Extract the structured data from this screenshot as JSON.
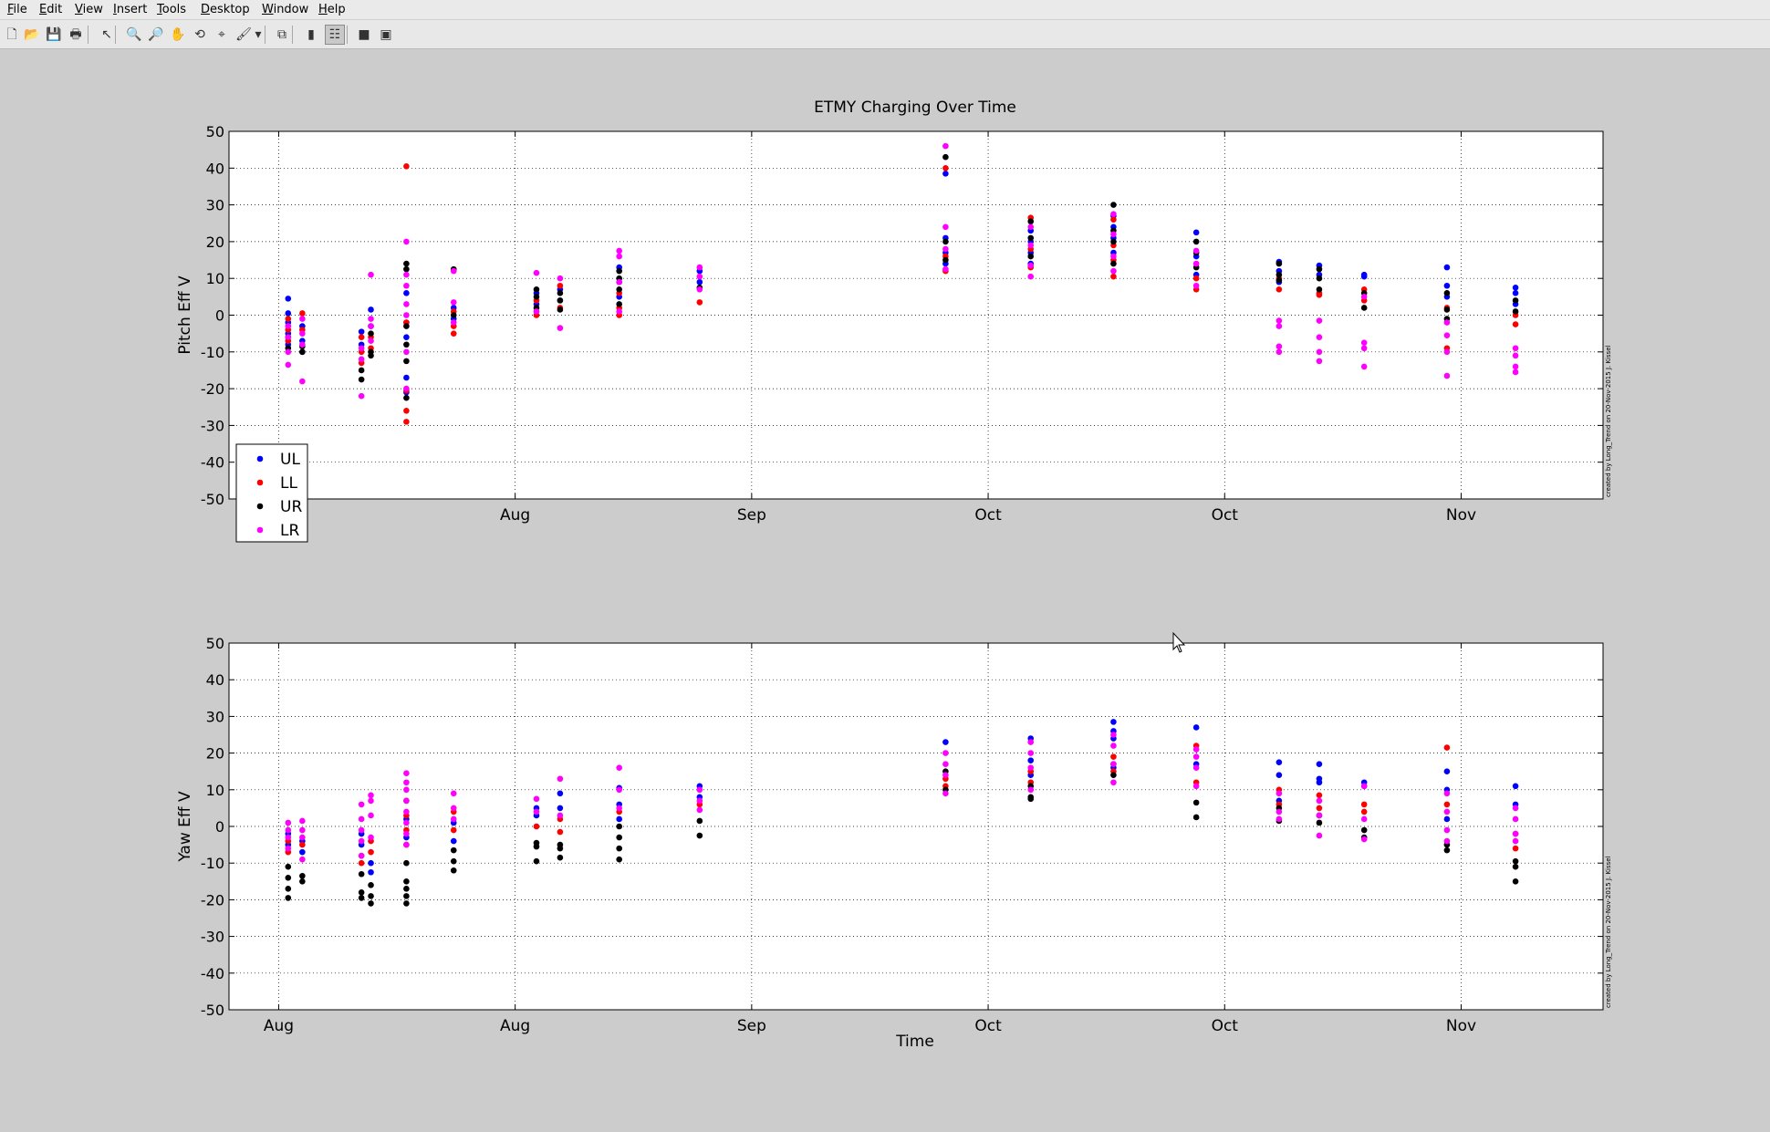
{
  "window": {
    "menus": [
      {
        "label": "File",
        "mnemonic": "F",
        "rest": "ile"
      },
      {
        "label": "Edit",
        "mnemonic": "E",
        "rest": "dit"
      },
      {
        "label": "View",
        "mnemonic": "V",
        "rest": "iew"
      },
      {
        "label": "Insert",
        "mnemonic": "I",
        "rest": "nsert"
      },
      {
        "label": "Tools",
        "mnemonic": "T",
        "rest": "ools"
      },
      {
        "label": "Desktop",
        "mnemonic": "D",
        "rest": "esktop"
      },
      {
        "label": "Window",
        "mnemonic": "W",
        "rest": "indow"
      },
      {
        "label": "Help",
        "mnemonic": "H",
        "rest": "elp"
      }
    ],
    "toolbar": [
      {
        "name": "new-figure-icon",
        "glyph": "🗋"
      },
      {
        "name": "open-file-icon",
        "glyph": "📂"
      },
      {
        "name": "save-icon",
        "glyph": "💾"
      },
      {
        "name": "print-icon",
        "glyph": "🖶"
      },
      {
        "name": "edit-plot-arrow-icon",
        "glyph": "↖"
      },
      {
        "name": "zoom-in-icon",
        "glyph": "🔍"
      },
      {
        "name": "zoom-out-icon",
        "glyph": "🔎"
      },
      {
        "name": "pan-hand-icon",
        "glyph": "✋"
      },
      {
        "name": "rotate-3d-icon",
        "glyph": "⟲"
      },
      {
        "name": "data-cursor-icon",
        "glyph": "⌖"
      },
      {
        "name": "brush-icon",
        "glyph": "🖌"
      },
      {
        "name": "brush-dropdown-icon",
        "glyph": "▾"
      },
      {
        "name": "link-plot-icon",
        "glyph": "⧉"
      },
      {
        "name": "insert-colorbar-icon",
        "glyph": "▮"
      },
      {
        "name": "insert-legend-icon",
        "glyph": "☷"
      },
      {
        "name": "hide-plot-tools-icon",
        "glyph": "■"
      },
      {
        "name": "show-plot-tools-icon",
        "glyph": "▣"
      }
    ]
  },
  "colors": {
    "UL": "#0000ff",
    "LL": "#ff0000",
    "UR": "#000000",
    "LR": "#ff00ff"
  },
  "figure_title": "ETMY Charging Over Time",
  "xlabel": "Time",
  "credit": "created by Long_Trend on 20-Nov-2015 J. Kissel",
  "chart_data": [
    {
      "type": "scatter",
      "title": "ETMY Charging Over Time",
      "xlabel": "",
      "ylabel": "Pitch Eff V",
      "ylim": [
        -50,
        50
      ],
      "yticks": [
        50,
        40,
        30,
        20,
        10,
        0,
        -10,
        -20,
        -30,
        -40,
        -50
      ],
      "xticks": [
        "Aug",
        "Aug",
        "Sep",
        "Oct",
        "Oct",
        "Nov"
      ],
      "x_tick_positions": [
        0,
        1,
        2,
        3,
        4,
        5
      ],
      "xlim": [
        -0.21,
        5.6
      ],
      "grid": "on",
      "legend": {
        "placement": "bottom-left",
        "entries": [
          "UL",
          "LL",
          "UR",
          "LR"
        ]
      },
      "columns": [
        {
          "x": 0.04,
          "UL": [
            4.5,
            0.5,
            -2,
            -5,
            -8
          ],
          "LL": [
            -1,
            -4,
            -7
          ],
          "UR": [
            -6,
            -9
          ],
          "LR": [
            -3,
            -6,
            -10,
            -13.5
          ]
        },
        {
          "x": 0.1,
          "UL": [
            -3,
            -7,
            -10
          ],
          "LL": [
            0.5,
            -4
          ],
          "UR": [
            -8.5,
            -10
          ],
          "LR": [
            -1,
            -5,
            -8,
            -18
          ]
        },
        {
          "x": 0.35,
          "UL": [
            -4.5,
            -8
          ],
          "LL": [
            -6,
            -10,
            -13
          ],
          "UR": [
            -15,
            -17.5
          ],
          "LR": [
            -9,
            -12,
            -22
          ]
        },
        {
          "x": 0.39,
          "UL": [
            1.5,
            -3
          ],
          "LL": [
            -6,
            -9
          ],
          "UR": [
            -5,
            -10,
            -11
          ],
          "LR": [
            11,
            -1,
            -3,
            -7
          ]
        },
        {
          "x": 0.54,
          "UL": [
            6,
            -2,
            -6,
            -17,
            -21
          ],
          "LL": [
            40.5,
            -2,
            -20.5,
            -26,
            -29
          ],
          "UR": [
            14,
            12.5,
            -3,
            -8,
            -12.5,
            -22.5
          ],
          "LR": [
            20,
            11,
            8,
            3,
            0,
            -10,
            -20
          ]
        },
        {
          "x": 0.74,
          "UL": [
            2,
            -1
          ],
          "LL": [
            1,
            -3,
            -5
          ],
          "UR": [
            12.5,
            0
          ],
          "LR": [
            12,
            3.5,
            -2
          ]
        },
        {
          "x": 1.09,
          "UL": [
            6,
            3
          ],
          "LL": [
            4,
            0
          ],
          "UR": [
            7,
            5,
            2
          ],
          "LR": [
            11.5,
            1
          ]
        },
        {
          "x": 1.19,
          "UL": [
            7,
            4
          ],
          "LL": [
            8,
            2
          ],
          "UR": [
            6,
            4,
            1.5
          ],
          "LR": [
            10,
            -3.5
          ]
        },
        {
          "x": 1.44,
          "UL": [
            13,
            9,
            5
          ],
          "LL": [
            6,
            2,
            0
          ],
          "UR": [
            12,
            10,
            7,
            3
          ],
          "LR": [
            17.5,
            16,
            9,
            1
          ]
        },
        {
          "x": 1.78,
          "UL": [
            12,
            9
          ],
          "LL": [
            3.5
          ],
          "UR": [
            7.5
          ],
          "LR": [
            13,
            10.5,
            7
          ]
        },
        {
          "x": 2.82,
          "UL": [
            38.5,
            21,
            17,
            14
          ],
          "LL": [
            40,
            16,
            12
          ],
          "UR": [
            43,
            20,
            15
          ],
          "LR": [
            46,
            24,
            18,
            12.5
          ]
        },
        {
          "x": 3.18,
          "UL": [
            23,
            20,
            17,
            14
          ],
          "LL": [
            26.5,
            18,
            13
          ],
          "UR": [
            25.5,
            21,
            16
          ],
          "LR": [
            24,
            19,
            13.5,
            10.5
          ]
        },
        {
          "x": 3.53,
          "UL": [
            27,
            24,
            21,
            17
          ],
          "LL": [
            26,
            19,
            15,
            10.5
          ],
          "UR": [
            30,
            23,
            20,
            14
          ],
          "LR": [
            27.5,
            22,
            16,
            12
          ]
        },
        {
          "x": 3.88,
          "UL": [
            22.5,
            16,
            11
          ],
          "LL": [
            10,
            7
          ],
          "UR": [
            20,
            17,
            13
          ],
          "LR": [
            17.5,
            14,
            8
          ]
        },
        {
          "x": 4.23,
          "UL": [
            14.5,
            12,
            9
          ],
          "LL": [
            10,
            7
          ],
          "UR": [
            14,
            11,
            9.5
          ],
          "LR": [
            -1.5,
            -3,
            -8.5,
            -10
          ]
        },
        {
          "x": 4.4,
          "UL": [
            13.5,
            11
          ],
          "LL": [
            6,
            5.5
          ],
          "UR": [
            12.5,
            10,
            7
          ],
          "LR": [
            -1.5,
            -6,
            -10,
            -12.5
          ]
        },
        {
          "x": 4.59,
          "UL": [
            11,
            10.5
          ],
          "LL": [
            7,
            4
          ],
          "UR": [
            6,
            2
          ],
          "LR": [
            5,
            -7.5,
            -9,
            -14
          ]
        },
        {
          "x": 4.94,
          "UL": [
            13,
            8,
            5
          ],
          "LL": [
            2,
            -9
          ],
          "UR": [
            6,
            1.5,
            -1
          ],
          "LR": [
            -2,
            -5.5,
            -10,
            -16.5
          ]
        },
        {
          "x": 5.23,
          "UL": [
            7.5,
            6,
            3
          ],
          "LL": [
            0,
            -2.5
          ],
          "UR": [
            4,
            1
          ],
          "LR": [
            -9,
            -11,
            -14,
            -15.5
          ]
        }
      ]
    },
    {
      "type": "scatter",
      "title": "",
      "xlabel": "Time",
      "ylabel": "Yaw Eff V",
      "ylim": [
        -50,
        50
      ],
      "yticks": [
        50,
        40,
        30,
        20,
        10,
        0,
        -10,
        -20,
        -30,
        -40,
        -50
      ],
      "xticks": [
        "Aug",
        "Aug",
        "Sep",
        "Oct",
        "Oct",
        "Nov"
      ],
      "x_tick_positions": [
        0,
        1,
        2,
        3,
        4,
        5
      ],
      "xlim": [
        -0.21,
        5.6
      ],
      "grid": "on",
      "columns": [
        {
          "x": 0.04,
          "UL": [
            -2,
            -5
          ],
          "LL": [
            -4,
            -7
          ],
          "UR": [
            -11,
            -14,
            -17,
            -19.5
          ],
          "LR": [
            1,
            -1,
            -3,
            -6
          ]
        },
        {
          "x": 0.1,
          "UL": [
            -4,
            -7
          ],
          "LL": [
            -5
          ],
          "UR": [
            -13.5,
            -15
          ],
          "LR": [
            1.5,
            -1,
            -3,
            -9
          ]
        },
        {
          "x": 0.35,
          "UL": [
            -2,
            -5
          ],
          "LL": [
            -8,
            -10
          ],
          "UR": [
            -13,
            -18,
            -19.5
          ],
          "LR": [
            6,
            2,
            -1,
            -4,
            -8
          ]
        },
        {
          "x": 0.39,
          "UL": [
            -10,
            -12.5
          ],
          "LL": [
            -4,
            -7
          ],
          "UR": [
            -16,
            -19,
            -21
          ],
          "LR": [
            8.5,
            7,
            3,
            -3
          ]
        },
        {
          "x": 0.54,
          "UL": [
            2,
            -3
          ],
          "LL": [
            7,
            3,
            -1,
            -5
          ],
          "UR": [
            -10,
            -15,
            -17,
            -19,
            -21
          ],
          "LR": [
            14.5,
            12,
            10,
            7,
            4,
            1,
            -2,
            -5
          ]
        },
        {
          "x": 0.74,
          "UL": [
            1,
            -4
          ],
          "LL": [
            4,
            -1
          ],
          "UR": [
            -6.5,
            -9.5,
            -12
          ],
          "LR": [
            9,
            5,
            2
          ]
        },
        {
          "x": 1.09,
          "UL": [
            5,
            3
          ],
          "LL": [
            0
          ],
          "UR": [
            -4.5,
            -5.5,
            -9.5
          ],
          "LR": [
            7.5,
            4
          ]
        },
        {
          "x": 1.19,
          "UL": [
            9,
            5
          ],
          "LL": [
            2,
            -1.5
          ],
          "UR": [
            -5,
            -6,
            -8.5
          ],
          "LR": [
            13,
            3
          ]
        },
        {
          "x": 1.44,
          "UL": [
            10.5,
            6,
            2
          ],
          "LL": [
            4
          ],
          "UR": [
            0,
            -3,
            -6,
            -9
          ],
          "LR": [
            16,
            10,
            5
          ]
        },
        {
          "x": 1.78,
          "UL": [
            11,
            8
          ],
          "LL": [
            6
          ],
          "UR": [
            1.5,
            -2.5
          ],
          "LR": [
            10,
            7,
            4.5
          ]
        },
        {
          "x": 2.82,
          "UL": [
            23
          ],
          "LL": [
            13,
            11
          ],
          "UR": [
            15,
            10
          ],
          "LR": [
            20,
            17,
            14,
            9
          ]
        },
        {
          "x": 3.18,
          "UL": [
            24,
            18,
            14
          ],
          "LL": [
            15,
            12
          ],
          "UR": [
            11,
            8,
            7.5
          ],
          "LR": [
            23,
            20,
            16,
            10
          ]
        },
        {
          "x": 3.53,
          "UL": [
            28.5,
            26,
            24,
            16
          ],
          "LL": [
            19,
            15
          ],
          "UR": [
            17,
            14
          ],
          "LR": [
            25,
            22,
            17,
            12
          ]
        },
        {
          "x": 3.88,
          "UL": [
            27,
            17
          ],
          "LL": [
            22,
            12
          ],
          "UR": [
            6.5,
            2.5
          ],
          "LR": [
            21,
            19,
            16,
            11
          ]
        },
        {
          "x": 4.23,
          "UL": [
            17.5,
            14,
            7
          ],
          "LL": [
            10,
            6
          ],
          "UR": [
            5,
            1.5
          ],
          "LR": [
            9,
            4,
            2
          ]
        },
        {
          "x": 4.4,
          "UL": [
            17,
            13,
            12
          ],
          "LL": [
            8.5,
            5
          ],
          "UR": [
            3,
            1
          ],
          "LR": [
            7,
            3,
            -2.5
          ]
        },
        {
          "x": 4.59,
          "UL": [
            12,
            11
          ],
          "LL": [
            6,
            4
          ],
          "UR": [
            -1,
            -3
          ],
          "LR": [
            11,
            2,
            -3.5
          ]
        },
        {
          "x": 4.94,
          "UL": [
            15,
            10,
            2
          ],
          "LL": [
            21.5,
            6
          ],
          "UR": [
            -5,
            -6.5
          ],
          "LR": [
            9,
            4,
            -1,
            -4
          ]
        },
        {
          "x": 5.23,
          "UL": [
            11,
            6
          ],
          "LL": [
            -2,
            -6
          ],
          "UR": [
            -9.5,
            -11,
            -15
          ],
          "LR": [
            5,
            2,
            -2,
            -4
          ]
        }
      ]
    }
  ]
}
